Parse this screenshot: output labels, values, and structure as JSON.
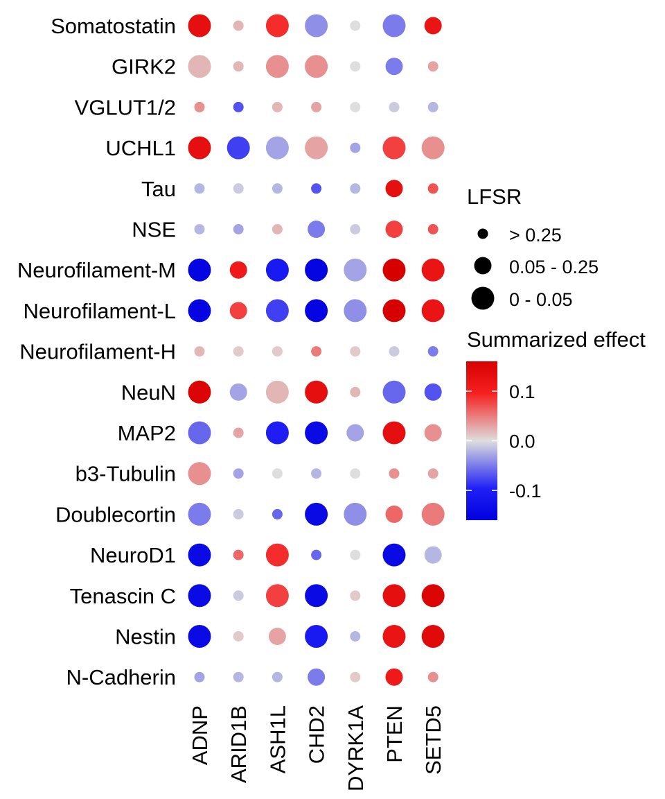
{
  "chart_data": {
    "type": "dot-matrix",
    "rows": [
      "Somatostatin",
      "GIRK2",
      "VGLUT1/2",
      "UCHL1",
      "Tau",
      "NSE",
      "Neurofilament-M",
      "Neurofilament-L",
      "Neurofilament-H",
      "NeuN",
      "MAP2",
      "b3-Tubulin",
      "Doublecortin",
      "NeuroD1",
      "Tenascin C",
      "Nestin",
      "N-Cadherin"
    ],
    "columns": [
      "ADNP",
      "ARID1B",
      "ASH1L",
      "CHD2",
      "DYRK1A",
      "PTEN",
      "SETD5"
    ],
    "size_legend": {
      "title": "LFSR",
      "levels": [
        "> 0.25",
        "0.05 - 0.25",
        "0 - 0.05"
      ]
    },
    "color_legend": {
      "title": "Summarized effect",
      "ticks": [
        "0.1",
        "0.0",
        "-0.1"
      ],
      "tick_values": [
        0.1,
        0.0,
        -0.1
      ],
      "range": [
        -0.16,
        0.16
      ],
      "colors": {
        "low": "#0000dd",
        "mid": "#dedede",
        "high": "#d70000",
        "neg": "#2020f6",
        "pos": "#f62020"
      }
    },
    "cells": [
      [
        {
          "effect": 0.13,
          "lfsr": 2
        },
        {
          "effect": 0.02,
          "lfsr": 0
        },
        {
          "effect": 0.09,
          "lfsr": 2
        },
        {
          "effect": -0.04,
          "lfsr": 2
        },
        {
          "effect": 0.0,
          "lfsr": 0
        },
        {
          "effect": -0.05,
          "lfsr": 2
        },
        {
          "effect": 0.12,
          "lfsr": 1
        }
      ],
      [
        {
          "effect": 0.02,
          "lfsr": 2
        },
        {
          "effect": 0.02,
          "lfsr": 0
        },
        {
          "effect": 0.04,
          "lfsr": 2
        },
        {
          "effect": 0.04,
          "lfsr": 2
        },
        {
          "effect": 0.0,
          "lfsr": 0
        },
        {
          "effect": -0.05,
          "lfsr": 1
        },
        {
          "effect": 0.03,
          "lfsr": 0
        }
      ],
      [
        {
          "effect": 0.04,
          "lfsr": 0
        },
        {
          "effect": -0.07,
          "lfsr": 0
        },
        {
          "effect": 0.02,
          "lfsr": 0
        },
        {
          "effect": 0.03,
          "lfsr": 0
        },
        {
          "effect": 0.0,
          "lfsr": 0
        },
        {
          "effect": -0.01,
          "lfsr": 0
        },
        {
          "effect": -0.02,
          "lfsr": 0
        }
      ],
      [
        {
          "effect": 0.13,
          "lfsr": 2
        },
        {
          "effect": -0.08,
          "lfsr": 2
        },
        {
          "effect": -0.03,
          "lfsr": 2
        },
        {
          "effect": 0.03,
          "lfsr": 2
        },
        {
          "effect": -0.03,
          "lfsr": 0
        },
        {
          "effect": 0.08,
          "lfsr": 2
        },
        {
          "effect": 0.04,
          "lfsr": 2
        }
      ],
      [
        {
          "effect": -0.02,
          "lfsr": 0
        },
        {
          "effect": -0.01,
          "lfsr": 0
        },
        {
          "effect": -0.02,
          "lfsr": 0
        },
        {
          "effect": -0.07,
          "lfsr": 0
        },
        {
          "effect": -0.02,
          "lfsr": 0
        },
        {
          "effect": 0.13,
          "lfsr": 1
        },
        {
          "effect": 0.07,
          "lfsr": 0
        }
      ],
      [
        {
          "effect": -0.02,
          "lfsr": 0
        },
        {
          "effect": -0.03,
          "lfsr": 0
        },
        {
          "effect": 0.02,
          "lfsr": 0
        },
        {
          "effect": -0.05,
          "lfsr": 1
        },
        {
          "effect": -0.01,
          "lfsr": 0
        },
        {
          "effect": 0.08,
          "lfsr": 1
        },
        {
          "effect": 0.07,
          "lfsr": 0
        }
      ],
      [
        {
          "effect": -0.15,
          "lfsr": 2
        },
        {
          "effect": 0.11,
          "lfsr": 1
        },
        {
          "effect": -0.11,
          "lfsr": 2
        },
        {
          "effect": -0.15,
          "lfsr": 2
        },
        {
          "effect": -0.03,
          "lfsr": 2
        },
        {
          "effect": 0.17,
          "lfsr": 2
        },
        {
          "effect": 0.12,
          "lfsr": 2
        }
      ],
      [
        {
          "effect": -0.15,
          "lfsr": 2
        },
        {
          "effect": 0.08,
          "lfsr": 1
        },
        {
          "effect": -0.08,
          "lfsr": 2
        },
        {
          "effect": -0.15,
          "lfsr": 2
        },
        {
          "effect": -0.04,
          "lfsr": 2
        },
        {
          "effect": 0.17,
          "lfsr": 2
        },
        {
          "effect": 0.12,
          "lfsr": 2
        }
      ],
      [
        {
          "effect": 0.02,
          "lfsr": 0
        },
        {
          "effect": 0.01,
          "lfsr": 0
        },
        {
          "effect": 0.01,
          "lfsr": 0
        },
        {
          "effect": 0.05,
          "lfsr": 0
        },
        {
          "effect": 0.01,
          "lfsr": 0
        },
        {
          "effect": -0.01,
          "lfsr": 0
        },
        {
          "effect": -0.05,
          "lfsr": 0
        }
      ],
      [
        {
          "effect": 0.15,
          "lfsr": 2
        },
        {
          "effect": -0.03,
          "lfsr": 1
        },
        {
          "effect": 0.02,
          "lfsr": 2
        },
        {
          "effect": 0.13,
          "lfsr": 2
        },
        {
          "effect": 0.02,
          "lfsr": 0
        },
        {
          "effect": -0.06,
          "lfsr": 2
        },
        {
          "effect": -0.07,
          "lfsr": 1
        }
      ],
      [
        {
          "effect": -0.06,
          "lfsr": 2
        },
        {
          "effect": 0.03,
          "lfsr": 0
        },
        {
          "effect": -0.1,
          "lfsr": 2
        },
        {
          "effect": -0.14,
          "lfsr": 2
        },
        {
          "effect": -0.03,
          "lfsr": 1
        },
        {
          "effect": 0.13,
          "lfsr": 2
        },
        {
          "effect": 0.04,
          "lfsr": 1
        }
      ],
      [
        {
          "effect": 0.04,
          "lfsr": 2
        },
        {
          "effect": -0.03,
          "lfsr": 0
        },
        {
          "effect": 0.0,
          "lfsr": 0
        },
        {
          "effect": -0.02,
          "lfsr": 0
        },
        {
          "effect": 0.0,
          "lfsr": 0
        },
        {
          "effect": 0.04,
          "lfsr": 0
        },
        {
          "effect": 0.03,
          "lfsr": 0
        }
      ],
      [
        {
          "effect": -0.05,
          "lfsr": 2
        },
        {
          "effect": -0.01,
          "lfsr": 0
        },
        {
          "effect": -0.06,
          "lfsr": 0
        },
        {
          "effect": -0.14,
          "lfsr": 2
        },
        {
          "effect": -0.04,
          "lfsr": 2
        },
        {
          "effect": 0.06,
          "lfsr": 1
        },
        {
          "effect": 0.05,
          "lfsr": 2
        }
      ],
      [
        {
          "effect": -0.14,
          "lfsr": 2
        },
        {
          "effect": 0.06,
          "lfsr": 0
        },
        {
          "effect": 0.09,
          "lfsr": 2
        },
        {
          "effect": -0.06,
          "lfsr": 0
        },
        {
          "effect": 0.0,
          "lfsr": 0
        },
        {
          "effect": -0.14,
          "lfsr": 2
        },
        {
          "effect": -0.02,
          "lfsr": 1
        }
      ],
      [
        {
          "effect": -0.14,
          "lfsr": 2
        },
        {
          "effect": -0.01,
          "lfsr": 0
        },
        {
          "effect": 0.08,
          "lfsr": 2
        },
        {
          "effect": -0.14,
          "lfsr": 2
        },
        {
          "effect": 0.01,
          "lfsr": 0
        },
        {
          "effect": 0.13,
          "lfsr": 2
        },
        {
          "effect": 0.15,
          "lfsr": 2
        }
      ],
      [
        {
          "effect": -0.14,
          "lfsr": 2
        },
        {
          "effect": 0.01,
          "lfsr": 0
        },
        {
          "effect": 0.03,
          "lfsr": 1
        },
        {
          "effect": -0.11,
          "lfsr": 2
        },
        {
          "effect": -0.02,
          "lfsr": 0
        },
        {
          "effect": 0.12,
          "lfsr": 2
        },
        {
          "effect": 0.14,
          "lfsr": 2
        }
      ],
      [
        {
          "effect": -0.03,
          "lfsr": 0
        },
        {
          "effect": -0.02,
          "lfsr": 0
        },
        {
          "effect": -0.02,
          "lfsr": 0
        },
        {
          "effect": -0.05,
          "lfsr": 1
        },
        {
          "effect": 0.01,
          "lfsr": 0
        },
        {
          "effect": 0.11,
          "lfsr": 1
        },
        {
          "effect": 0.04,
          "lfsr": 0
        }
      ]
    ]
  }
}
